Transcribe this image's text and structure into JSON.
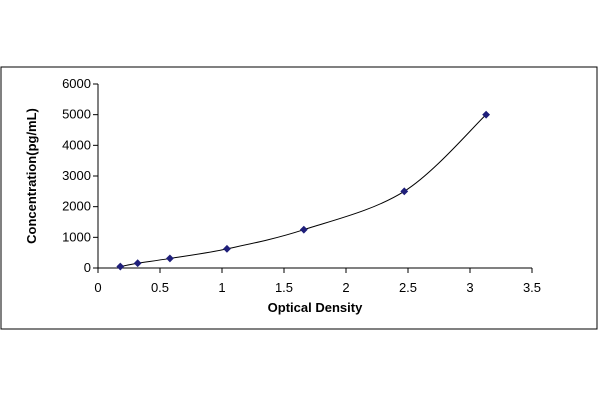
{
  "chart_data": {
    "type": "scatter",
    "xlabel": "Optical Density",
    "ylabel": "Concentration(pg/mL)",
    "xlim": [
      0,
      3.5
    ],
    "ylim": [
      0,
      6000
    ],
    "x_ticks": [
      "0",
      "0.5",
      "1",
      "1.5",
      "2",
      "2.5",
      "3",
      "3.5"
    ],
    "y_ticks": [
      "0",
      "1000",
      "2000",
      "3000",
      "4000",
      "5000",
      "6000"
    ],
    "grid": false,
    "legend": "none",
    "series": [
      {
        "x": [
          0.18,
          0.32,
          0.58,
          1.04,
          1.66,
          2.47,
          3.13
        ],
        "y": [
          47,
          156,
          312,
          625,
          1250,
          2500,
          5000
        ],
        "marker": "diamond",
        "trendline": "smooth curve",
        "color": "#1f1f7a"
      }
    ]
  }
}
